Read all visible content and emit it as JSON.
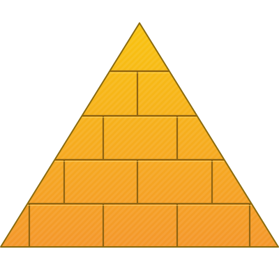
{
  "icon": {
    "name": "pyramid",
    "colors": {
      "top_fill": "#f8c410",
      "bottom_fill": "#f4972b",
      "outline": "#8a6a0e",
      "mortar": "#8f6412",
      "highlight": "#ffe27a"
    }
  }
}
